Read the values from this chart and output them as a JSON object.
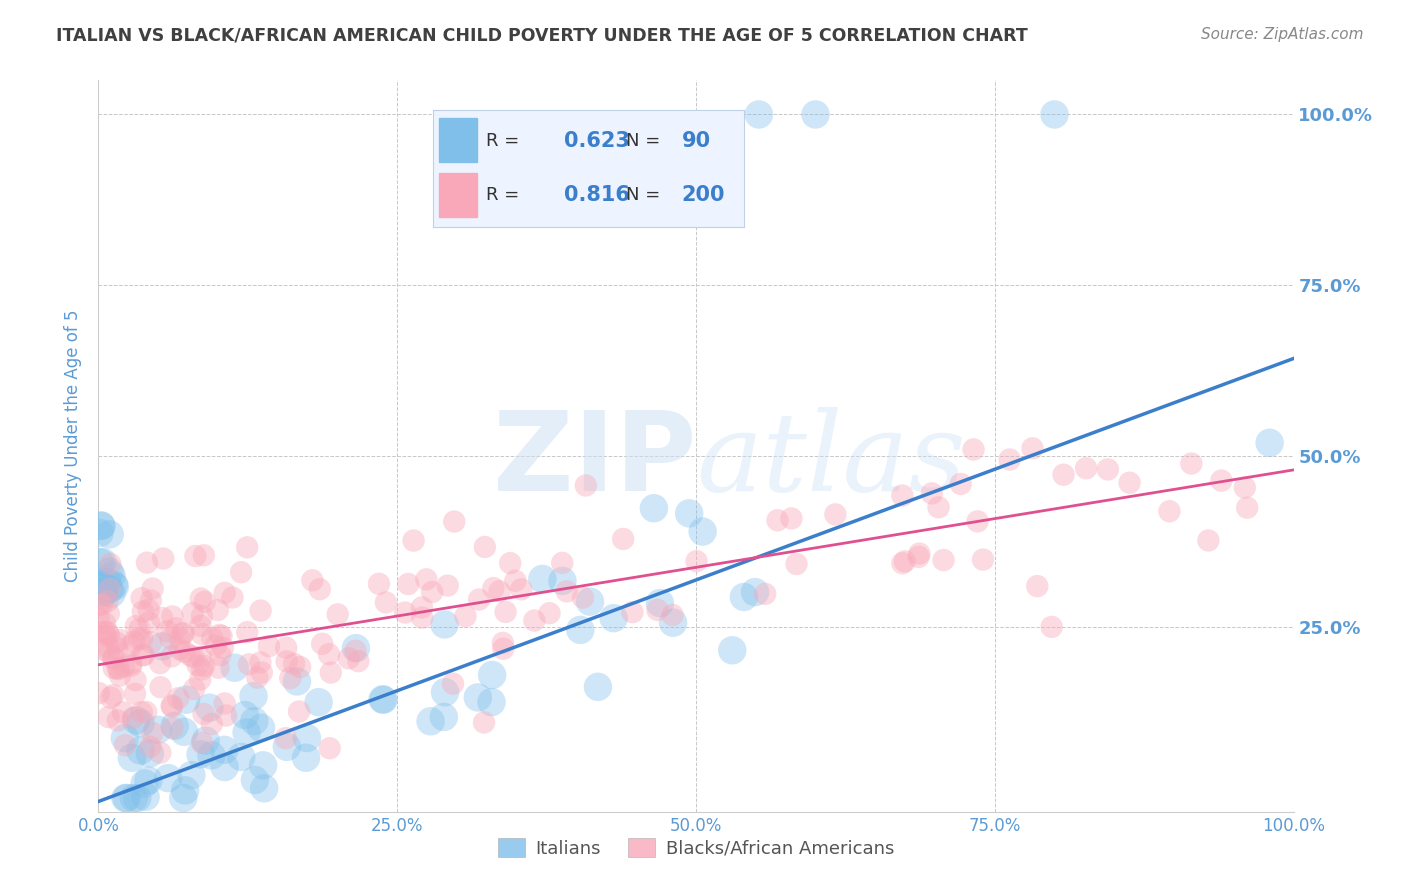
{
  "title": "ITALIAN VS BLACK/AFRICAN AMERICAN CHILD POVERTY UNDER THE AGE OF 5 CORRELATION CHART",
  "source": "Source: ZipAtlas.com",
  "ylabel": "Child Poverty Under the Age of 5",
  "xlim": [
    0.0,
    1.0
  ],
  "ylim": [
    -0.02,
    1.05
  ],
  "xtick_labels": [
    "0.0%",
    "25.0%",
    "50.0%",
    "75.0%",
    "100.0%"
  ],
  "xtick_positions": [
    0.0,
    0.25,
    0.5,
    0.75,
    1.0
  ],
  "right_ytick_labels": [
    "100.0%",
    "75.0%",
    "50.0%",
    "25.0%"
  ],
  "right_ytick_positions": [
    1.0,
    0.75,
    0.5,
    0.25
  ],
  "italian_R": "0.623",
  "italian_N": "90",
  "black_R": "0.816",
  "black_N": "200",
  "italian_color": "#7fbfea",
  "black_color": "#f8a8b8",
  "italian_line_color": "#3b7fcc",
  "black_line_color": "#e05090",
  "watermark_color": "#d0e8f8",
  "background_color": "#ffffff",
  "grid_color": "#c8c8c8",
  "title_color": "#404040",
  "axis_label_color": "#5b9bd5",
  "tick_label_color": "#5b9bd5",
  "legend_bg_color": "#edf4ff",
  "legend_border_color": "#c0d0e8",
  "italian_slope": 0.648,
  "italian_intercept": -0.005,
  "black_slope": 0.285,
  "black_intercept": 0.195,
  "seed": 77
}
